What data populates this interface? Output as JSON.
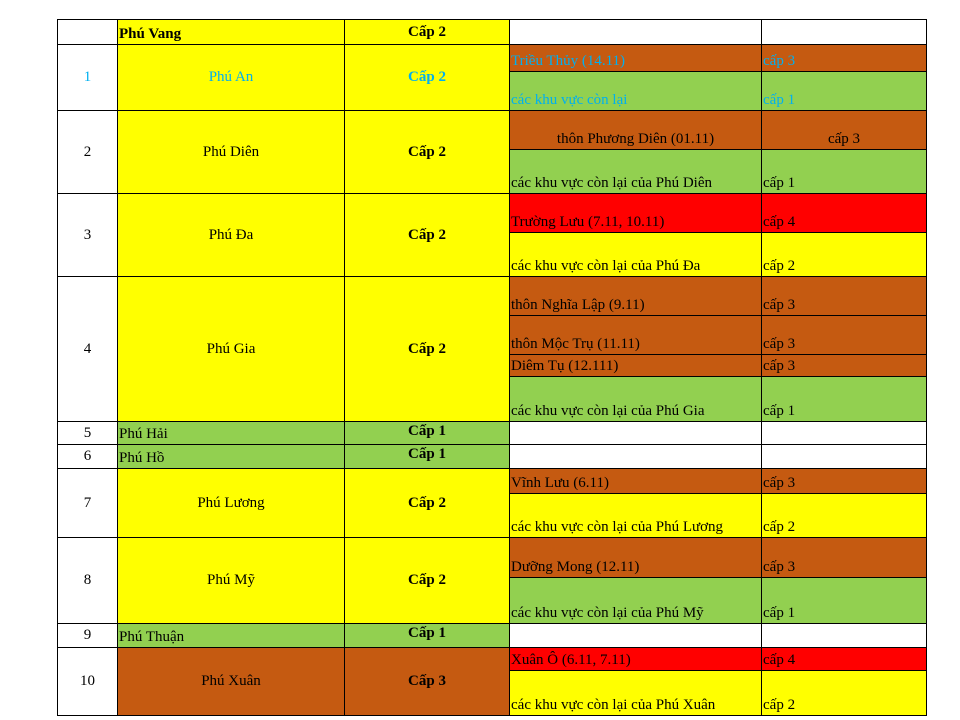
{
  "colors": {
    "yellow": "#ffff00",
    "green": "#92d050",
    "brown": "#c55a11",
    "red": "#ff0000",
    "white": "#ffffff",
    "cyan_text": "#00b0f0"
  },
  "header": {
    "district": "Phú Vang",
    "level": "Cấp 2"
  },
  "rows": [
    {
      "no": "1",
      "commune": "Phú An",
      "level": "Cấp 2",
      "zones": [
        {
          "area": "Triều Thủy  (14.11)",
          "level": "cấp 3"
        },
        {
          "area": "các khu vực còn lại",
          "level": "cấp 1"
        }
      ]
    },
    {
      "no": "2",
      "commune": "Phú Diên",
      "level": "Cấp 2",
      "zones": [
        {
          "area": "thôn Phương Diên (01.11)",
          "level": "cấp 3"
        },
        {
          "area": "các khu vực còn lại của Phú Diên",
          "level": "cấp 1"
        }
      ]
    },
    {
      "no": "3",
      "commune": "Phú Đa",
      "level": "Cấp 2",
      "zones": [
        {
          "area": "Trường Lưu (7.11, 10.11)",
          "level": "cấp 4"
        },
        {
          "area": "các khu vực còn lại của Phú Đa",
          "level": "cấp 2"
        }
      ]
    },
    {
      "no": "4",
      "commune": "Phú Gia",
      "level": "Cấp 2",
      "zones": [
        {
          "area": "thôn Nghĩa Lập (9.11)",
          "level": "cấp 3"
        },
        {
          "area": "thôn Mộc Trụ (11.11)",
          "level": "cấp 3"
        },
        {
          "area": "Diêm Tụ (12.111)",
          "level": "cấp 3"
        },
        {
          "area": "các khu vực còn lại của Phú Gia",
          "level": "cấp 1"
        }
      ]
    },
    {
      "no": "5",
      "commune": "Phú Hải",
      "level": "Cấp 1",
      "zones": []
    },
    {
      "no": "6",
      "commune": "Phú Hồ",
      "level": "Cấp 1",
      "zones": []
    },
    {
      "no": "7",
      "commune": "Phú Lương",
      "level": "Cấp 2",
      "zones": [
        {
          "area": "Vĩnh Lưu (6.11)",
          "level": "cấp 3"
        },
        {
          "area": "các khu vực còn lại của Phú Lương",
          "level": "cấp 2"
        }
      ]
    },
    {
      "no": "8",
      "commune": "Phú Mỹ",
      "level": "Cấp 2",
      "zones": [
        {
          "area": "Dưỡng Mong (12.11)",
          "level": "cấp 3"
        },
        {
          "area": "các khu vực còn lại của Phú Mỹ",
          "level": "cấp 1"
        }
      ]
    },
    {
      "no": "9",
      "commune": "Phú Thuận",
      "level": "Cấp 1",
      "zones": []
    },
    {
      "no": "10",
      "commune": "Phú Xuân",
      "level": "Cấp 3",
      "zones": [
        {
          "area": "Xuân Ô (6.11, 7.11)",
          "level": "cấp 4"
        },
        {
          "area": "các khu vực còn lại của Phú Xuân",
          "level": "cấp 2"
        }
      ]
    }
  ]
}
